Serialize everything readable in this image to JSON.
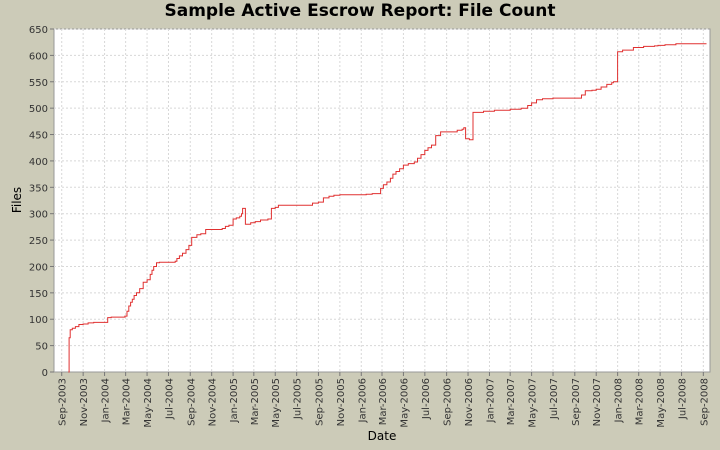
{
  "chart_data": {
    "type": "line",
    "title": "Sample Active Escrow Report: File Count",
    "xlabel": "Date",
    "ylabel": "Files",
    "ylim": [
      0,
      650
    ],
    "yticks": [
      0,
      50,
      100,
      150,
      200,
      250,
      300,
      350,
      400,
      450,
      500,
      550,
      600,
      650
    ],
    "xticks": [
      "Sep-2003",
      "Nov-2003",
      "Jan-2004",
      "Mar-2004",
      "May-2004",
      "Jul-2004",
      "Sep-2004",
      "Nov-2004",
      "Jan-2005",
      "Mar-2005",
      "May-2005",
      "Jul-2005",
      "Sep-2005",
      "Nov-2005",
      "Jan-2006",
      "Mar-2006",
      "May-2006",
      "Jul-2006",
      "Sep-2006",
      "Nov-2006",
      "Jan-2007",
      "Mar-2007",
      "May-2007",
      "Jul-2007",
      "Sep-2007",
      "Nov-2007",
      "Jan-2008",
      "Mar-2008",
      "May-2008",
      "Jul-2008",
      "Sep-2008"
    ],
    "grid": true,
    "line_color": "#e03030",
    "series": [
      {
        "x": [
          "2003-09-20",
          "2003-09-22",
          "2003-09-25",
          "2003-10-01",
          "2003-10-10",
          "2003-10-20",
          "2003-11-01",
          "2003-11-15",
          "2003-12-01",
          "2004-01-05",
          "2004-01-10",
          "2004-01-20",
          "2004-02-10",
          "2004-02-28",
          "2004-03-05",
          "2004-03-10",
          "2004-03-15",
          "2004-03-20",
          "2004-03-25",
          "2004-04-01",
          "2004-04-10",
          "2004-04-20",
          "2004-05-01",
          "2004-05-10",
          "2004-05-15",
          "2004-05-20",
          "2004-05-28",
          "2004-06-05",
          "2004-06-20",
          "2004-07-05",
          "2004-07-20",
          "2004-07-25",
          "2004-08-01",
          "2004-08-10",
          "2004-08-20",
          "2004-08-28",
          "2004-09-05",
          "2004-09-20",
          "2004-10-01",
          "2004-10-15",
          "2004-11-15",
          "2004-12-01",
          "2004-12-10",
          "2004-12-20",
          "2005-01-01",
          "2005-01-10",
          "2005-01-20",
          "2005-01-25",
          "2005-01-28",
          "2005-02-05",
          "2005-02-20",
          "2005-03-05",
          "2005-03-20",
          "2005-04-10",
          "2005-04-20",
          "2005-05-01",
          "2005-05-10",
          "2005-06-01",
          "2005-07-01",
          "2005-08-01",
          "2005-08-15",
          "2005-09-01",
          "2005-09-15",
          "2005-10-01",
          "2005-10-15",
          "2005-11-01",
          "2005-12-01",
          "2006-01-15",
          "2006-02-01",
          "2006-02-15",
          "2006-02-25",
          "2006-03-05",
          "2006-03-15",
          "2006-03-25",
          "2006-04-01",
          "2006-04-10",
          "2006-04-20",
          "2006-05-01",
          "2006-05-15",
          "2006-06-01",
          "2006-06-10",
          "2006-06-20",
          "2006-07-01",
          "2006-07-10",
          "2006-07-20",
          "2006-08-01",
          "2006-08-15",
          "2006-09-01",
          "2006-09-15",
          "2006-10-01",
          "2006-10-15",
          "2006-10-20",
          "2006-10-25",
          "2006-11-05",
          "2006-11-10",
          "2006-11-15",
          "2006-12-15",
          "2007-01-15",
          "2007-02-01",
          "2007-03-01",
          "2007-04-01",
          "2007-04-20",
          "2007-05-01",
          "2007-05-15",
          "2007-06-01",
          "2007-07-01",
          "2007-08-01",
          "2007-09-01",
          "2007-09-10",
          "2007-09-20",
          "2007-10-01",
          "2007-10-20",
          "2007-11-01",
          "2007-11-15",
          "2007-12-01",
          "2007-12-15",
          "2007-12-20",
          "2008-01-01",
          "2008-01-15",
          "2008-02-15",
          "2008-03-15",
          "2008-04-15",
          "2008-04-25",
          "2008-05-15",
          "2008-06-15",
          "2008-07-15",
          "2008-08-15",
          "2008-09-10"
        ],
        "values": [
          0,
          65,
          80,
          83,
          86,
          90,
          91,
          93,
          94,
          94,
          103,
          104,
          104,
          106,
          115,
          125,
          132,
          138,
          145,
          150,
          158,
          170,
          175,
          185,
          193,
          200,
          207,
          208,
          208,
          208,
          210,
          215,
          220,
          225,
          232,
          240,
          255,
          260,
          262,
          270,
          270,
          272,
          276,
          278,
          290,
          292,
          295,
          300,
          310,
          280,
          283,
          285,
          288,
          290,
          310,
          312,
          316,
          316,
          316,
          316,
          320,
          322,
          330,
          333,
          335,
          336,
          336,
          337,
          338,
          338,
          348,
          355,
          360,
          367,
          375,
          380,
          385,
          392,
          395,
          398,
          405,
          412,
          420,
          425,
          430,
          448,
          455,
          455,
          455,
          458,
          460,
          463,
          442,
          440,
          440,
          492,
          494,
          496,
          496,
          498,
          500,
          505,
          510,
          516,
          518,
          519,
          519,
          519,
          519,
          525,
          533,
          534,
          536,
          540,
          545,
          548,
          550,
          607,
          610,
          615,
          617,
          618,
          619,
          620,
          622,
          622,
          622,
          622
        ]
      }
    ]
  }
}
